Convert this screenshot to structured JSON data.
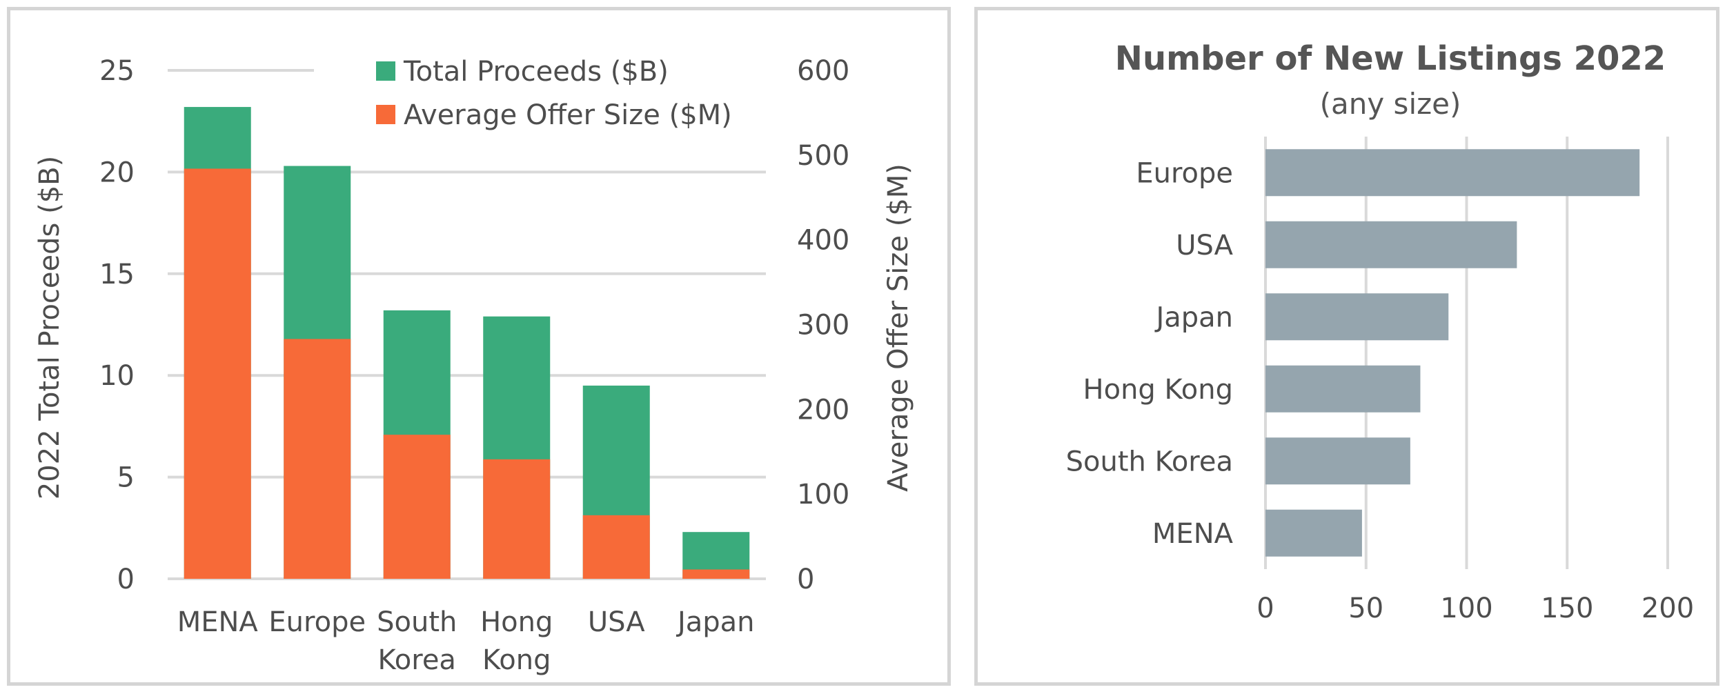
{
  "charts": {
    "left": {
      "ylabel_left": "2022 Total Proceeds ($B)",
      "ylabel_right": "Average Offer Size ($M)"
    },
    "right": {
      "title": "Number of New Listings 2022",
      "subtitle": "(any size)"
    }
  },
  "chart_data": [
    {
      "type": "bar",
      "stacked": true,
      "categories": [
        "MENA",
        "Europe",
        "South Korea",
        "Hong Kong",
        "USA",
        "Japan"
      ],
      "category_lines": [
        [
          "MENA"
        ],
        [
          "Europe"
        ],
        [
          "South",
          "Korea"
        ],
        [
          "Hong",
          "Kong"
        ],
        [
          "USA"
        ],
        [
          "Japan"
        ]
      ],
      "series": [
        {
          "name": "Average Offer Size ($M)",
          "color": "#f76a38",
          "axis": "right",
          "values": [
            484,
            283,
            170,
            141,
            75,
            11
          ]
        },
        {
          "name": "Total Proceeds ($B)",
          "color": "#3aab7c",
          "axis": "left",
          "values": [
            23.2,
            20.3,
            13.2,
            12.9,
            9.5,
            2.3
          ]
        }
      ],
      "ylabel": "2022 Total Proceeds ($B)",
      "ylabel_right": "Average Offer Size ($M)",
      "ylim": [
        0,
        25
      ],
      "yticks": [
        0,
        5,
        10,
        15,
        20,
        25
      ],
      "ylim_right": [
        0,
        600
      ],
      "yticks_right": [
        0,
        100,
        200,
        300,
        400,
        500,
        600
      ],
      "grid": true,
      "legend": "top-right",
      "legend_order": [
        "Total Proceeds ($B)",
        "Average Offer Size ($M)"
      ]
    },
    {
      "type": "bar",
      "orientation": "horizontal",
      "title": "Number of New Listings 2022",
      "subtitle": "(any size)",
      "categories": [
        "Europe",
        "USA",
        "Japan",
        "Hong Kong",
        "South Korea",
        "MENA"
      ],
      "values": [
        186,
        125,
        91,
        77,
        72,
        48
      ],
      "color": "#95a5ae",
      "xlim": [
        0,
        200
      ],
      "xticks": [
        0,
        50,
        100,
        150,
        200
      ],
      "grid": true
    }
  ]
}
